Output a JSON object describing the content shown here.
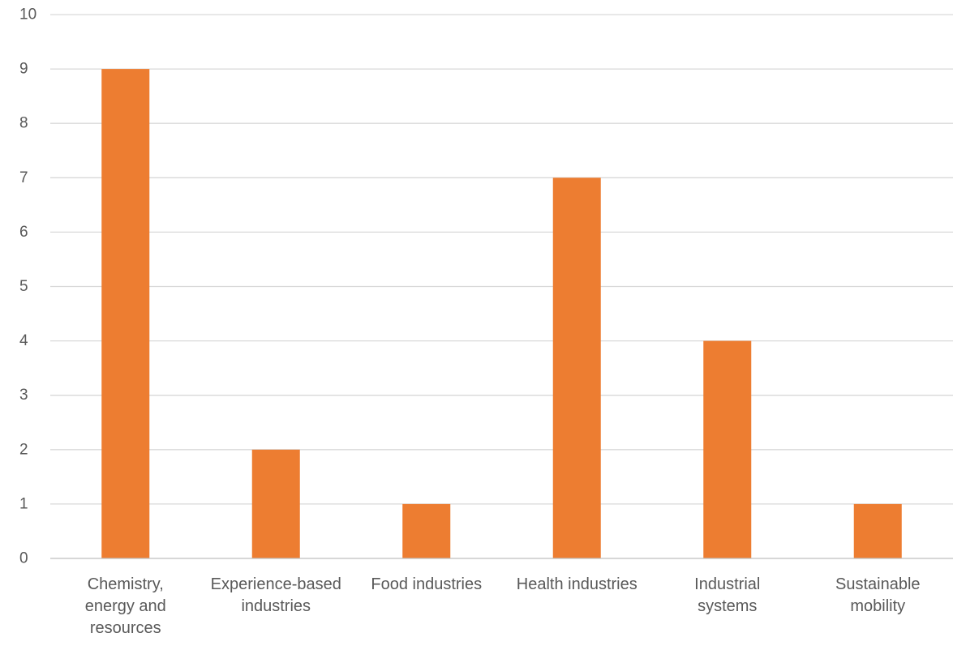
{
  "chart_data": {
    "type": "bar",
    "title": "",
    "xlabel": "",
    "ylabel": "",
    "categories": [
      "Chemistry, energy and resources",
      "Experience-based industries",
      "Food industries",
      "Health industries",
      "Industrial systems",
      "Sustainable mobility"
    ],
    "category_lines": [
      [
        "Chemistry,",
        "energy and",
        "resources"
      ],
      [
        "Experience-based",
        "industries"
      ],
      [
        "Food industries"
      ],
      [
        "Health industries"
      ],
      [
        "Industrial",
        "systems"
      ],
      [
        "Sustainable",
        "mobility"
      ]
    ],
    "values": [
      9,
      2,
      1,
      7,
      4,
      1
    ],
    "ylim": [
      0,
      10
    ],
    "yticks": [
      "0",
      "1",
      "2",
      "3",
      "4",
      "5",
      "6",
      "7",
      "8",
      "9",
      "10"
    ],
    "grid": true,
    "legend": "none",
    "bar_color": "#ED7D31"
  }
}
